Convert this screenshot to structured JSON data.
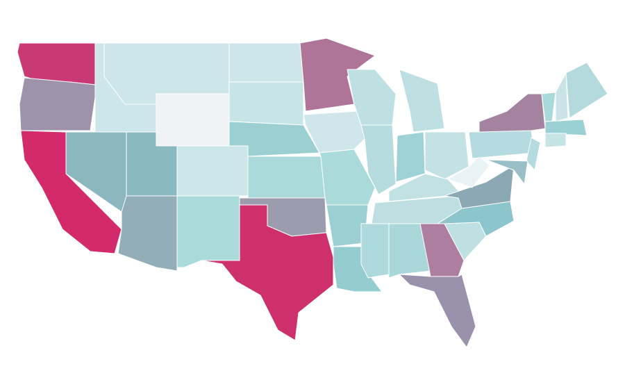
{
  "map": {
    "regions": [
      {
        "color": "#c93a74"
      },
      {
        "color": "#9e93aa"
      },
      {
        "color": "#d32a6c"
      },
      {
        "color": "#8bb8c0"
      },
      {
        "color": "#cde6ea"
      },
      {
        "color": "#cde6ea"
      },
      {
        "color": "#f1f2f4"
      },
      {
        "color": "#8ab9c1"
      },
      {
        "color": "#93aeb9"
      },
      {
        "color": "#cde6ea"
      },
      {
        "color": "#abdadb"
      },
      {
        "color": "#cde6ea"
      },
      {
        "color": "#c7e5e6"
      },
      {
        "color": "#9bcfd2"
      },
      {
        "color": "#abdadb"
      },
      {
        "color": "#9d9bae"
      },
      {
        "color": "#cd306d"
      },
      {
        "color": "#ae7598"
      },
      {
        "color": "#cfe6ea"
      },
      {
        "color": "#abdadb"
      },
      {
        "color": "#9bcfd2"
      },
      {
        "color": "#95ccd0"
      },
      {
        "color": "#bfe0e3"
      },
      {
        "color": "#b7dcdf"
      },
      {
        "color": "#bfe0e3"
      },
      {
        "color": "#9fd2d6"
      },
      {
        "color": "#c4e2e4"
      },
      {
        "color": "#c2e1e3"
      },
      {
        "color": "#bfdee2"
      },
      {
        "color": "#add9dc"
      },
      {
        "color": "#a9d7da"
      },
      {
        "color": "#ad7ea0"
      },
      {
        "color": "#9a92ac"
      },
      {
        "color": "#bee0e3"
      },
      {
        "color": "#8cc5cb"
      },
      {
        "color": "#8ca8b5"
      },
      {
        "color": "#e9f3f5"
      },
      {
        "color": "#b5dadf"
      },
      {
        "color": "#a483a1"
      },
      {
        "color": "#b5dadf"
      },
      {
        "color": "#9bbfc7"
      },
      {
        "color": "#aad9db"
      },
      {
        "color": "#c8e4e7"
      },
      {
        "color": "#b4dadd"
      },
      {
        "color": "#9bd0d4"
      },
      {
        "color": "#c4e3e5"
      }
    ]
  }
}
